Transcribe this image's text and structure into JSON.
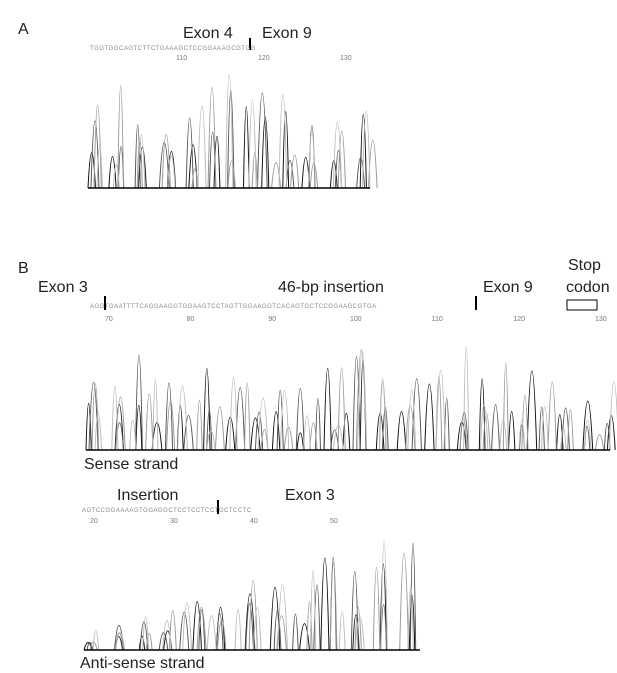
{
  "panel_a": {
    "label": "A",
    "exon_left": "Exon 4",
    "exon_right": "Exon 9",
    "ruler": [
      "110",
      "120",
      "130"
    ]
  },
  "panel_b": {
    "label": "B",
    "sense": {
      "exon_left": "Exon 3",
      "insertion": "46-bp insertion",
      "exon_right": "Exon 9",
      "stop_1": "Stop",
      "stop_2": "codon",
      "ruler": [
        "70",
        "80",
        "90",
        "100",
        "110",
        "120",
        "130"
      ],
      "caption": "Sense strand"
    },
    "antisense": {
      "insertion": "Insertion",
      "exon": "Exon 3",
      "ruler": [
        "20",
        "30",
        "40",
        "50"
      ],
      "caption": "Anti-sense strand"
    }
  }
}
